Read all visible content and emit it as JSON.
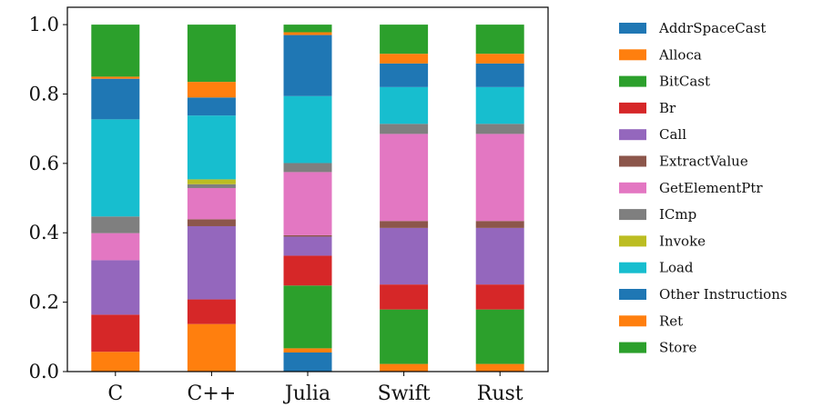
{
  "chart_data": {
    "type": "bar",
    "stacked": true,
    "categories": [
      "C",
      "C++",
      "Julia",
      "Swift",
      "Rust"
    ],
    "ylim": [
      0,
      1.05
    ],
    "yticks": [
      "0.0",
      "0.2",
      "0.4",
      "0.6",
      "0.8",
      "1.0"
    ],
    "grid": false,
    "legend_placement": "right",
    "series": [
      {
        "name": "AddrSpaceCast",
        "color": "#1f77b4",
        "values": [
          0.0,
          0.0,
          0.055,
          0.0,
          0.0
        ]
      },
      {
        "name": "Alloca",
        "color": "#ff7f0e",
        "values": [
          0.057,
          0.137,
          0.012,
          0.022,
          0.022
        ]
      },
      {
        "name": "BitCast",
        "color": "#2ca02c",
        "values": [
          0.0,
          0.0,
          0.181,
          0.157,
          0.157
        ]
      },
      {
        "name": "Br",
        "color": "#d62728",
        "values": [
          0.107,
          0.071,
          0.086,
          0.072,
          0.072
        ]
      },
      {
        "name": "Call",
        "color": "#9467bd",
        "values": [
          0.157,
          0.211,
          0.055,
          0.163,
          0.163
        ]
      },
      {
        "name": "ExtractValue",
        "color": "#8c564b",
        "values": [
          0.0,
          0.02,
          0.004,
          0.02,
          0.02
        ]
      },
      {
        "name": "GetElementPtr",
        "color": "#e377c2",
        "values": [
          0.078,
          0.09,
          0.182,
          0.251,
          0.251
        ]
      },
      {
        "name": "ICmp",
        "color": "#7f7f7f",
        "values": [
          0.048,
          0.011,
          0.026,
          0.029,
          0.029
        ]
      },
      {
        "name": "Invoke",
        "color": "#bcbd22",
        "values": [
          0.0,
          0.014,
          0.0,
          0.0,
          0.0
        ]
      },
      {
        "name": "Load",
        "color": "#17becf",
        "values": [
          0.28,
          0.184,
          0.193,
          0.106,
          0.106
        ]
      },
      {
        "name": "Other Instructions",
        "color": "#1f77b4",
        "values": [
          0.117,
          0.052,
          0.176,
          0.068,
          0.068
        ]
      },
      {
        "name": "Ret",
        "color": "#ff7f0e",
        "values": [
          0.006,
          0.045,
          0.008,
          0.028,
          0.028
        ]
      },
      {
        "name": "Store",
        "color": "#2ca02c",
        "values": [
          0.15,
          0.165,
          0.022,
          0.084,
          0.084
        ]
      }
    ]
  }
}
